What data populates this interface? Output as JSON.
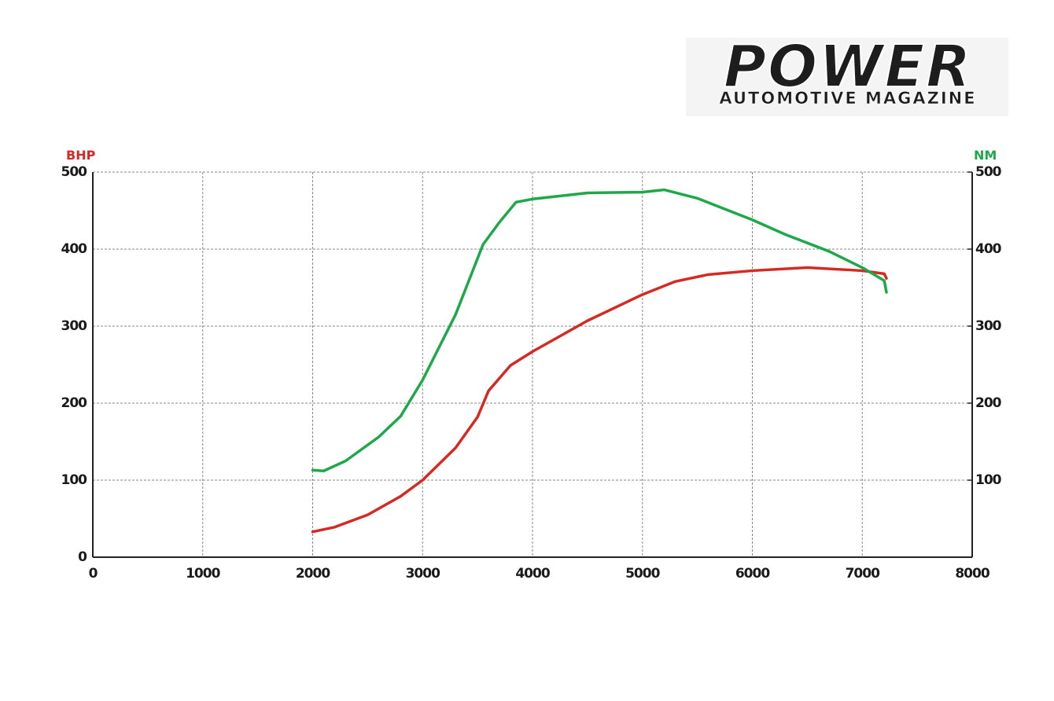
{
  "logo": {
    "title": "POWER",
    "subtitle": "AUTOMOTIVE MAGAZINE"
  },
  "chart_data": {
    "type": "line",
    "ylabel": "BHP",
    "y2label": "NM",
    "xlim": [
      0,
      8000
    ],
    "xticks": [
      0,
      1000,
      2000,
      3000,
      4000,
      5000,
      6000,
      7000,
      8000
    ],
    "ylim": [
      0,
      500
    ],
    "yticks": [
      0,
      100,
      200,
      300,
      400,
      500
    ],
    "y2lim": [
      0,
      500
    ],
    "y2ticks": [
      100,
      200,
      300,
      400,
      500
    ],
    "grid": true,
    "series": [
      {
        "color": "#d42a23",
        "x": [
          2000,
          2200,
          2500,
          2800,
          3000,
          3300,
          3500,
          3600,
          3800,
          4000,
          4500,
          5000,
          5300,
          5600,
          6000,
          6500,
          7000,
          7200,
          7220
        ],
        "values": [
          33,
          39,
          55,
          79,
          100,
          142,
          182,
          216,
          249,
          267,
          307,
          341,
          358,
          367,
          372,
          376,
          372,
          368,
          362
        ]
      },
      {
        "color": "#1fa84a",
        "axis": "y2",
        "x": [
          2000,
          2100,
          2300,
          2600,
          2800,
          3000,
          3300,
          3550,
          3700,
          3850,
          4000,
          4500,
          5000,
          5200,
          5500,
          6000,
          6300,
          6700,
          7000,
          7200,
          7220
        ],
        "values": [
          113,
          112,
          125,
          156,
          183,
          230,
          315,
          406,
          435,
          461,
          465,
          473,
          474,
          477,
          466,
          438,
          419,
          397,
          376,
          359,
          344
        ]
      }
    ]
  }
}
